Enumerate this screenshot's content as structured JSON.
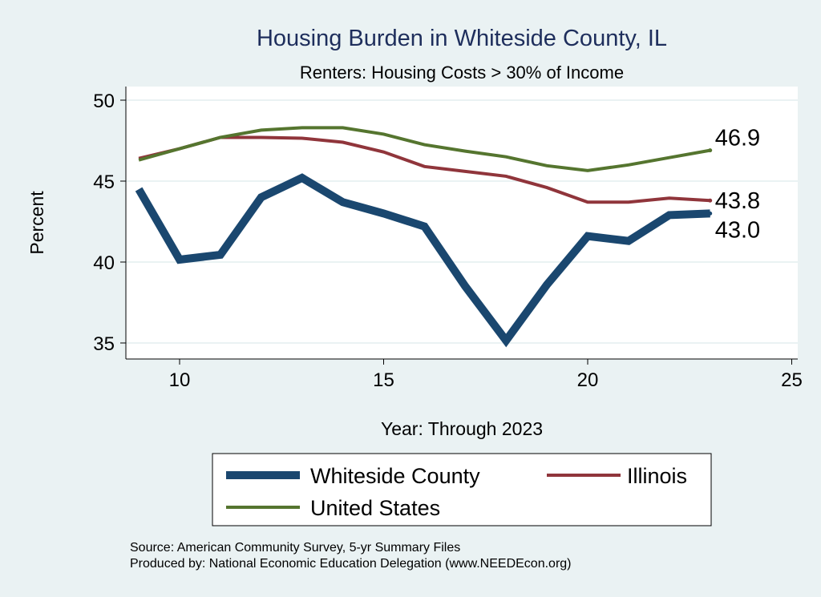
{
  "chart_data": {
    "type": "line",
    "title": "Housing Burden in Whiteside County, IL",
    "subtitle": "Renters: Housing Costs > 30% of Income",
    "xlabel": "Year: Through 2023",
    "ylabel": "Percent",
    "xlim": [
      8.7,
      25.3
    ],
    "ylim": [
      34.2,
      50.9
    ],
    "xticks": [
      10,
      15,
      20,
      25
    ],
    "yticks": [
      35,
      40,
      45,
      50
    ],
    "grid": true,
    "legend_position": "bottom",
    "x": [
      9,
      10,
      11,
      12,
      13,
      14,
      15,
      16,
      17,
      18,
      19,
      20,
      21,
      22,
      23
    ],
    "series": [
      {
        "name": "Whiteside County",
        "color": "#1a476f",
        "end_label": "43.0",
        "values": [
          44.5,
          40.15,
          40.45,
          44.0,
          45.2,
          43.7,
          43.0,
          42.2,
          38.5,
          35.15,
          38.6,
          41.6,
          41.3,
          42.9,
          43.0
        ]
      },
      {
        "name": "Illinois",
        "color": "#90353b",
        "end_label": "43.8",
        "values": [
          46.4,
          47.0,
          47.7,
          47.7,
          47.65,
          47.4,
          46.8,
          45.9,
          45.6,
          45.3,
          44.6,
          43.7,
          43.7,
          43.95,
          43.8
        ]
      },
      {
        "name": "United States",
        "color": "#55752f",
        "end_label": "46.9",
        "values": [
          46.3,
          47.0,
          47.7,
          48.15,
          48.3,
          48.3,
          47.9,
          47.25,
          46.85,
          46.5,
          45.95,
          45.65,
          46.0,
          46.45,
          46.9
        ]
      }
    ],
    "notes": [
      "Source: American Community Survey, 5-yr Summary Files",
      "Produced by: National Economic Education Delegation (www.NEEDEcon.org)"
    ]
  }
}
